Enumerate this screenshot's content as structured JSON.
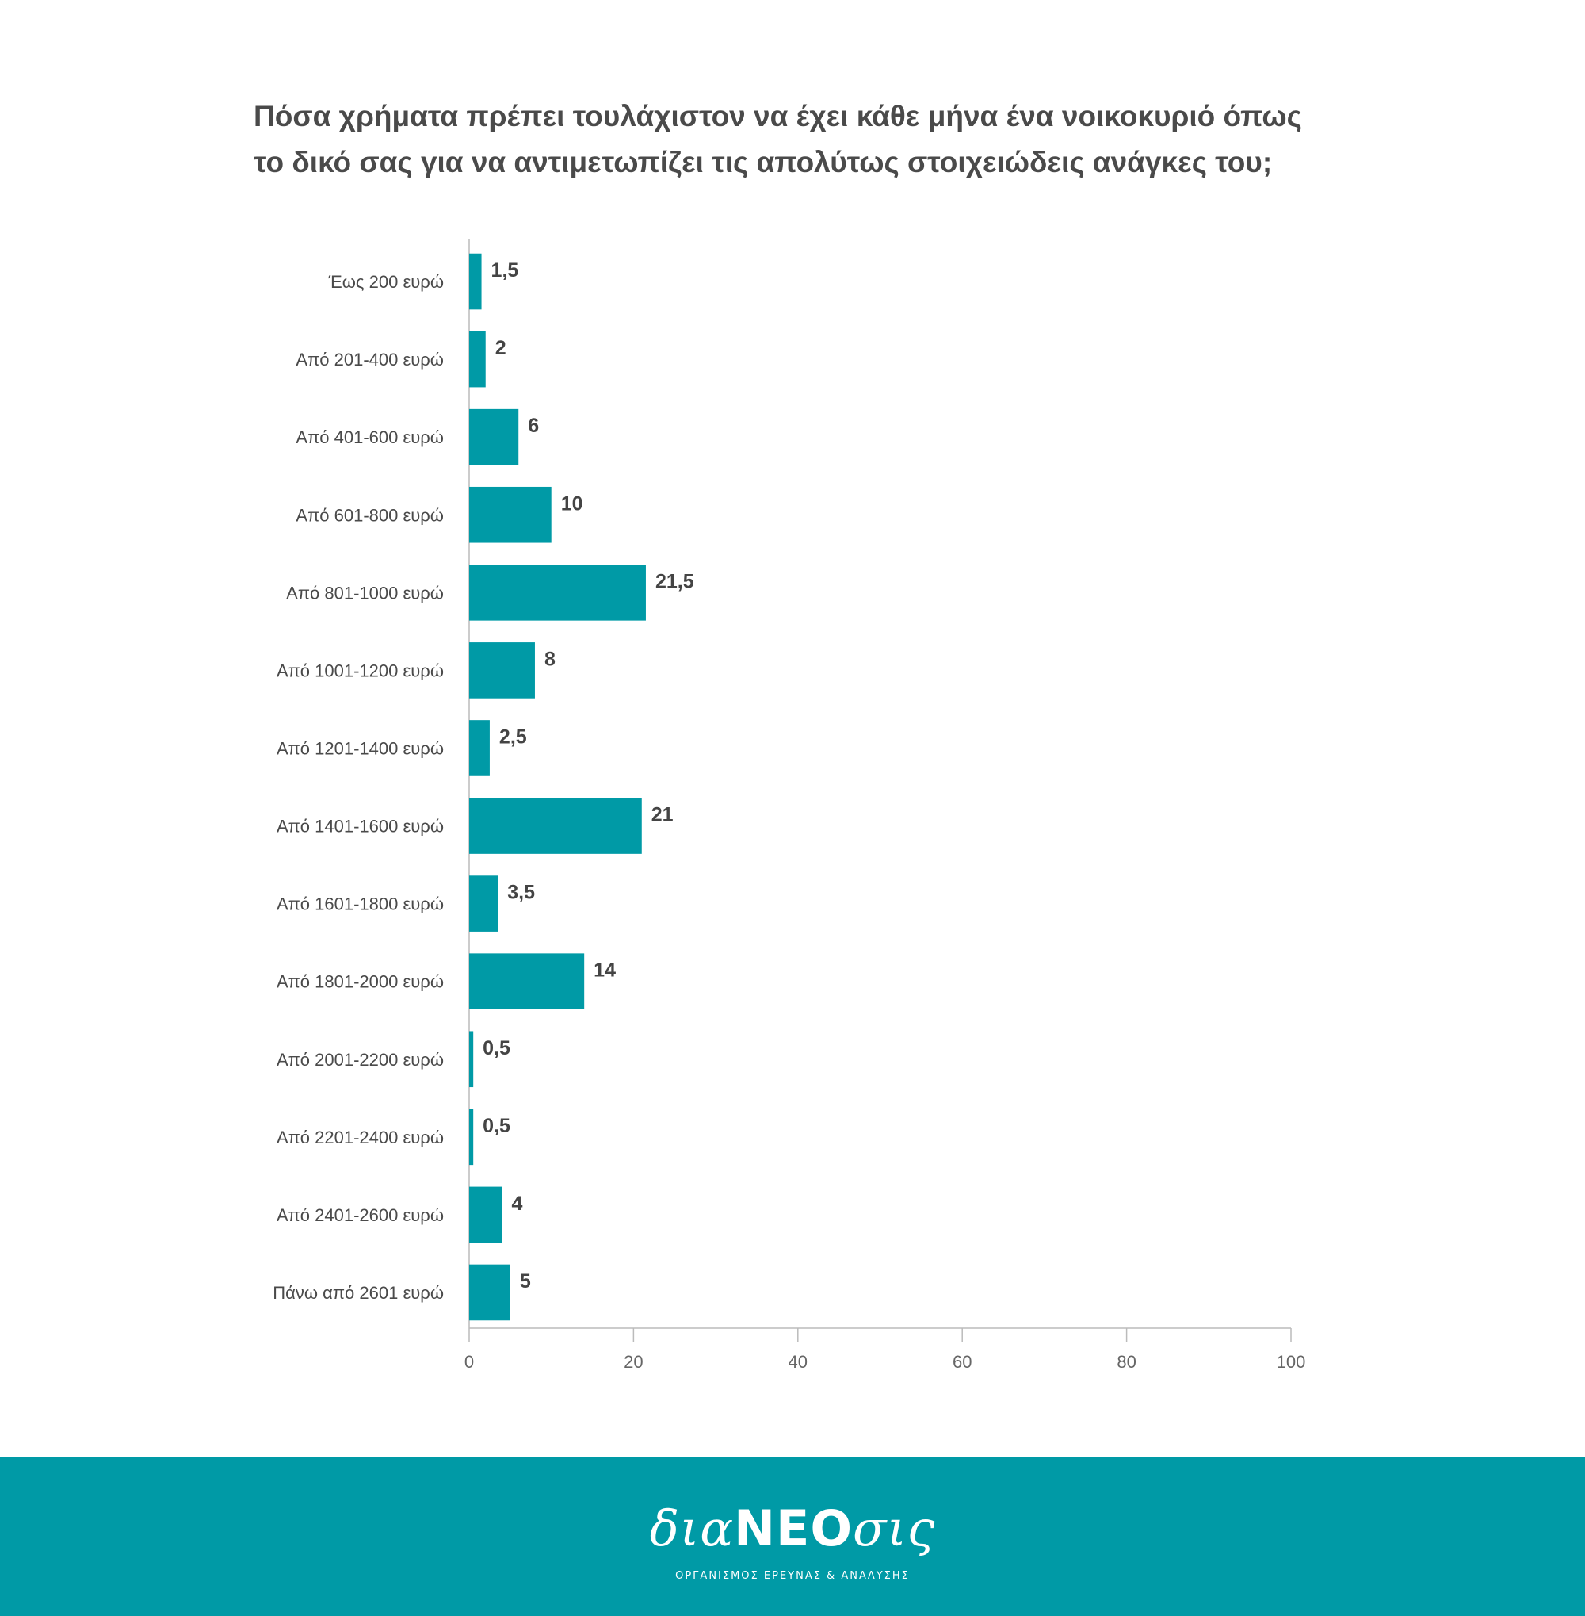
{
  "colors": {
    "bar": "#009aa6",
    "footer": "#009aa6",
    "axis": "#bbbbbb",
    "text": "#4a4a4a"
  },
  "chart_data": {
    "type": "bar",
    "orientation": "horizontal",
    "title_lines": [
      "Πόσα χρήματα πρέπει τουλάχιστον να έχει κάθε μήνα ένα νοικοκυριό όπως",
      "το δικό σας για να αντιμετωπίζει τις απολύτως στοιχειώδεις ανάγκες του;"
    ],
    "categories": [
      "Έως 200 ευρώ",
      "Από 201-400 ευρώ",
      "Από 401-600 ευρώ",
      "Από 601-800 ευρώ",
      "Από 801-1000 ευρώ",
      "Από 1001-1200 ευρώ",
      "Από 1201-1400 ευρώ",
      "Από 1401-1600 ευρώ",
      "Από 1601-1800 ευρώ",
      "Από 1801-2000 ευρώ",
      "Από 2001-2200 ευρώ",
      "Από 2201-2400 ευρώ",
      "Από 2401-2600 ευρώ",
      "Πάνω από 2601 ευρώ"
    ],
    "values": [
      1.5,
      2,
      6,
      10,
      21.5,
      8,
      2.5,
      21,
      3.5,
      14,
      0.5,
      0.5,
      4,
      5
    ],
    "value_labels": [
      "1,5",
      "2",
      "6",
      "10",
      "21,5",
      "8",
      "2,5",
      "21",
      "3,5",
      "14",
      "0,5",
      "0,5",
      "4",
      "5"
    ],
    "xlim": [
      0,
      100
    ],
    "xticks": [
      0,
      20,
      40,
      60,
      80,
      100
    ],
    "xtick_labels": [
      "0",
      "20",
      "40",
      "60",
      "80",
      "100"
    ],
    "grid": false,
    "legend": false
  },
  "footer": {
    "logo_prefix": "δια",
    "logo_caps": "ΝΕΟ",
    "logo_suffix": "σις",
    "tagline": "ΟΡΓΑΝΙΣΜΟΣ ΕΡΕΥΝΑΣ & ΑΝΑΛΥΣΗΣ"
  }
}
